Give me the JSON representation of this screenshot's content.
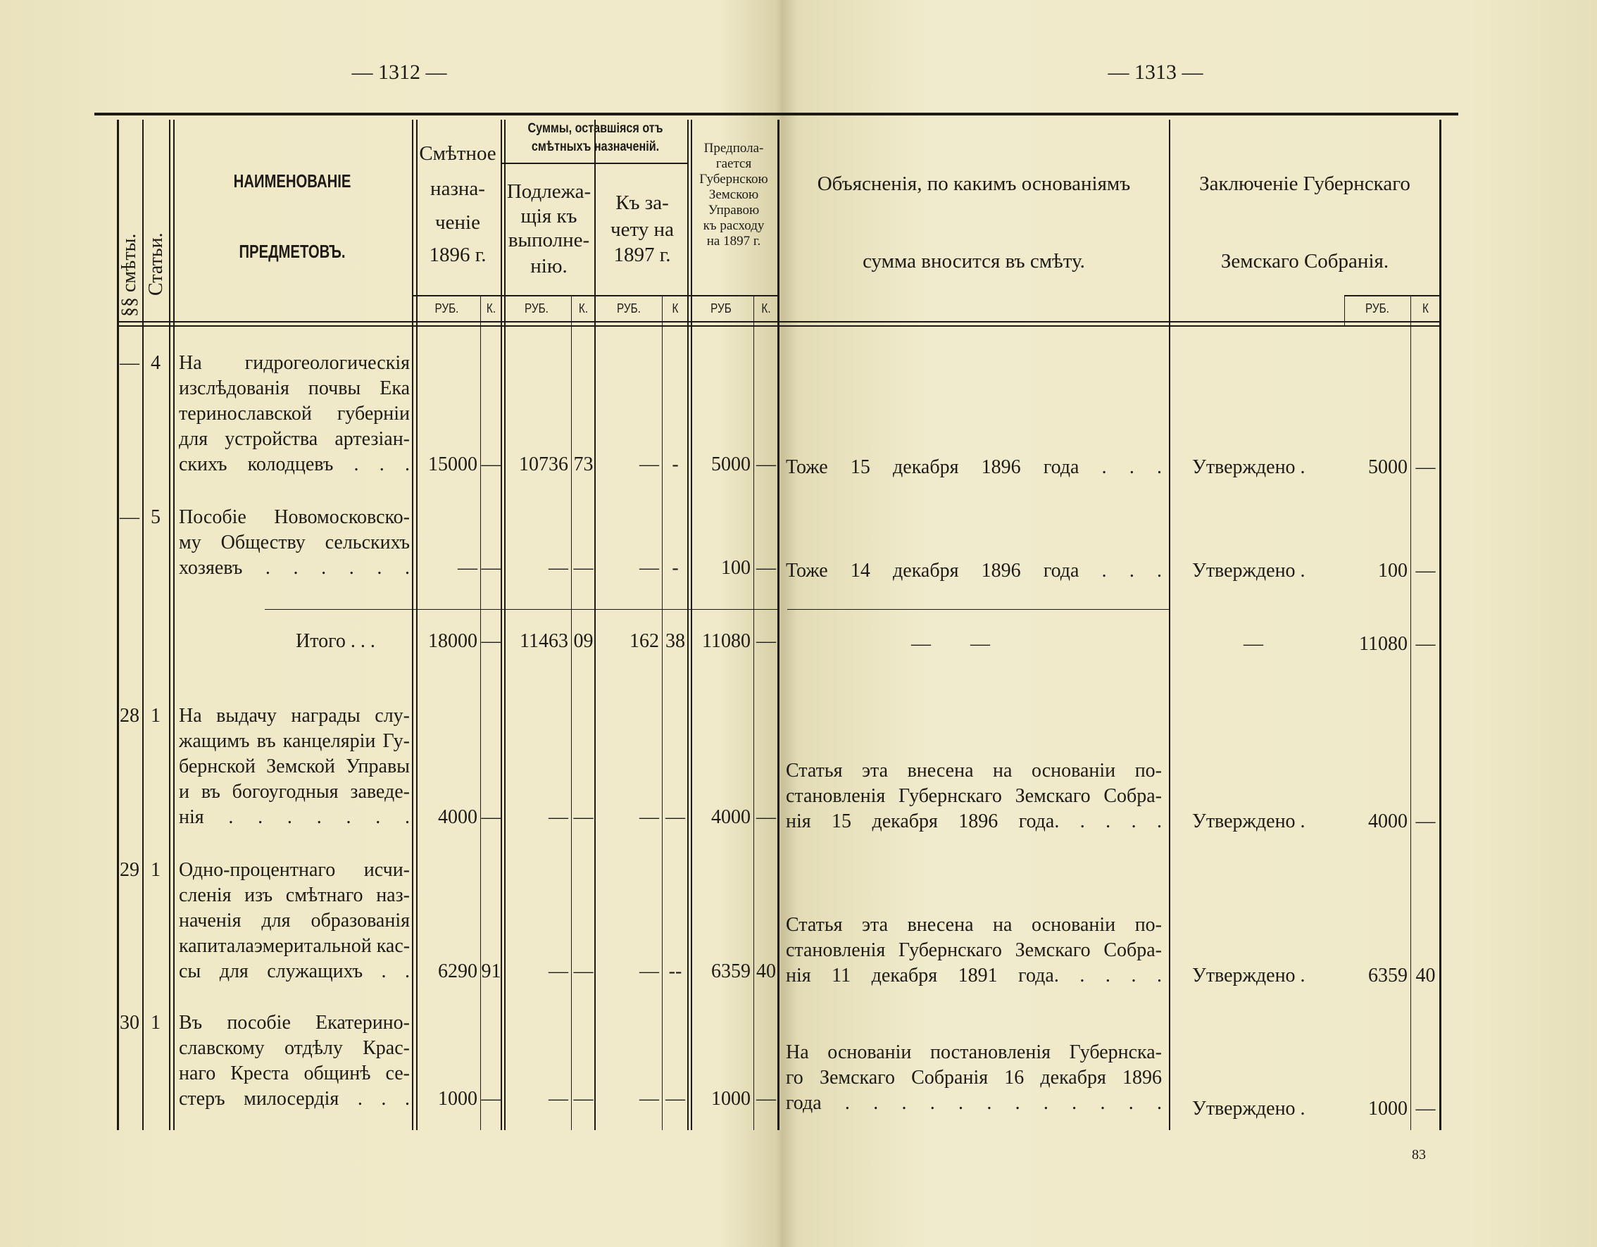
{
  "left_page": {
    "page_number": "— 1312 —",
    "header": {
      "section_col": "§§ смѣты.",
      "article_col": "Статьи.",
      "name_col": [
        "НАИМЕНОВАНІЕ",
        "ПРЕДМЕТОВЪ."
      ],
      "estimate_col": [
        "Смѣтное",
        "назна-",
        "ченіе",
        "1896 г."
      ],
      "remaining_group": [
        "Суммы, оставшіяся отъ",
        "смѣтныхъ назначеній."
      ],
      "to_execute_col": [
        "Подлежа-",
        "щія къ",
        "выполне-",
        "нію."
      ],
      "to_offset_col": [
        "Къ за-",
        "чету на",
        "1897 г."
      ],
      "proposed_col": [
        "Предпола-",
        "гается",
        "Губернскою",
        "Земскою",
        "Управою",
        "къ расходу",
        "на 1897 г."
      ],
      "units": [
        "РУБ.",
        "К.",
        "РУБ.",
        "К.",
        "РУБ.",
        "К",
        "РУБ",
        "К."
      ]
    },
    "rows": [
      {
        "section": "—",
        "article": "4",
        "name_lines": [
          "На гидрогеологическія",
          "изслѣдованія почвы Ека",
          "теринославской губерніи",
          "для устройства артезіан-",
          "скихъ колодцевъ . . ."
        ],
        "values": [
          "15000",
          "—",
          "10736",
          "73",
          "—",
          "-",
          "5000",
          "—"
        ]
      },
      {
        "section": "—",
        "article": "5",
        "name_lines": [
          "Пособіе Новомосковско-",
          "му Обществу сельскихъ",
          "хозяевъ . . . . . ."
        ],
        "values": [
          "—",
          "—",
          "—",
          "—",
          "—",
          "-",
          "100",
          "—"
        ]
      },
      {
        "section": "",
        "article": "",
        "name_lines": [
          "Итого . . ."
        ],
        "values": [
          "18000",
          "—",
          "11463",
          "09",
          "162",
          "38",
          "11080",
          "—"
        ]
      },
      {
        "section": "28",
        "article": "1",
        "name_lines": [
          "На выдачу награды слу-",
          "жащимъ въ канцеляріи Гу-",
          "бернской Земской Управы",
          "и въ богоугодныя заведе-",
          "нія . . . . . . ."
        ],
        "values": [
          "4000",
          "—",
          "—",
          "—",
          "—",
          "—",
          "4000",
          "—"
        ]
      },
      {
        "section": "29",
        "article": "1",
        "name_lines": [
          "Одно-процентнаго исчи-",
          "сленія изъ смѣтнаго наз-",
          "наченія для образованія",
          "капиталаэмеритальной кас-",
          "сы для служащихъ . ."
        ],
        "values": [
          "6290",
          "91",
          "—",
          "—",
          "—",
          "--",
          "6359",
          "40"
        ]
      },
      {
        "section": "30",
        "article": "1",
        "name_lines": [
          "Въ пособіе Екатерино-",
          "славскому отдѣлу Крас-",
          "наго Креста общинѣ се-",
          "стеръ милосердія . . ."
        ],
        "values": [
          "1000",
          "—",
          "—",
          "—",
          "—",
          "—",
          "1000",
          "—"
        ]
      }
    ]
  },
  "right_page": {
    "page_number": "— 1313 —",
    "header": {
      "explanation_col": [
        "Объясненія, по какимъ основаніямъ",
        "сумма вносится въ смѣту."
      ],
      "conclusion_col": [
        "Заключеніе Губернскаго",
        "Земскаго Собранія."
      ],
      "units": [
        "РУБ.",
        "К"
      ]
    },
    "rows": [
      {
        "explanation_lines": [
          "Тоже 15 декабря 1896 года . . ."
        ],
        "conclusion": "Утверждено .",
        "rub": "5000",
        "kop": "—"
      },
      {
        "explanation_lines": [
          "Тоже 14 декабря 1896 года . . ."
        ],
        "conclusion": "Утверждено .",
        "rub": "100",
        "kop": "—"
      },
      {
        "explanation_lines": [
          "—        —"
        ],
        "conclusion": "—",
        "rub": "11080",
        "kop": "—"
      },
      {
        "explanation_lines": [
          "Статья эта внесена на основаніи по-",
          "становленія Губернскаго Земскаго Собра-",
          "нія 15 декабря 1896 года. . . . ."
        ],
        "conclusion": "Утверждено .",
        "rub": "4000",
        "kop": "—"
      },
      {
        "explanation_lines": [
          "Статья эта внесена на основаніи по-",
          "становленія Губернскаго Земскаго Собра-",
          "нія 11 декабря 1891 года. . . . ."
        ],
        "conclusion": "Утверждено .",
        "rub": "6359",
        "kop": "40"
      },
      {
        "explanation_lines": [
          "На основаніи постановленія Губернска-",
          "го Земскаго Собранія 16 декабря 1896",
          "года . . . . . . . . . . . ."
        ],
        "conclusion": "Утверждено .",
        "rub": "1000",
        "kop": "—"
      }
    ],
    "signature_mark": "83"
  }
}
